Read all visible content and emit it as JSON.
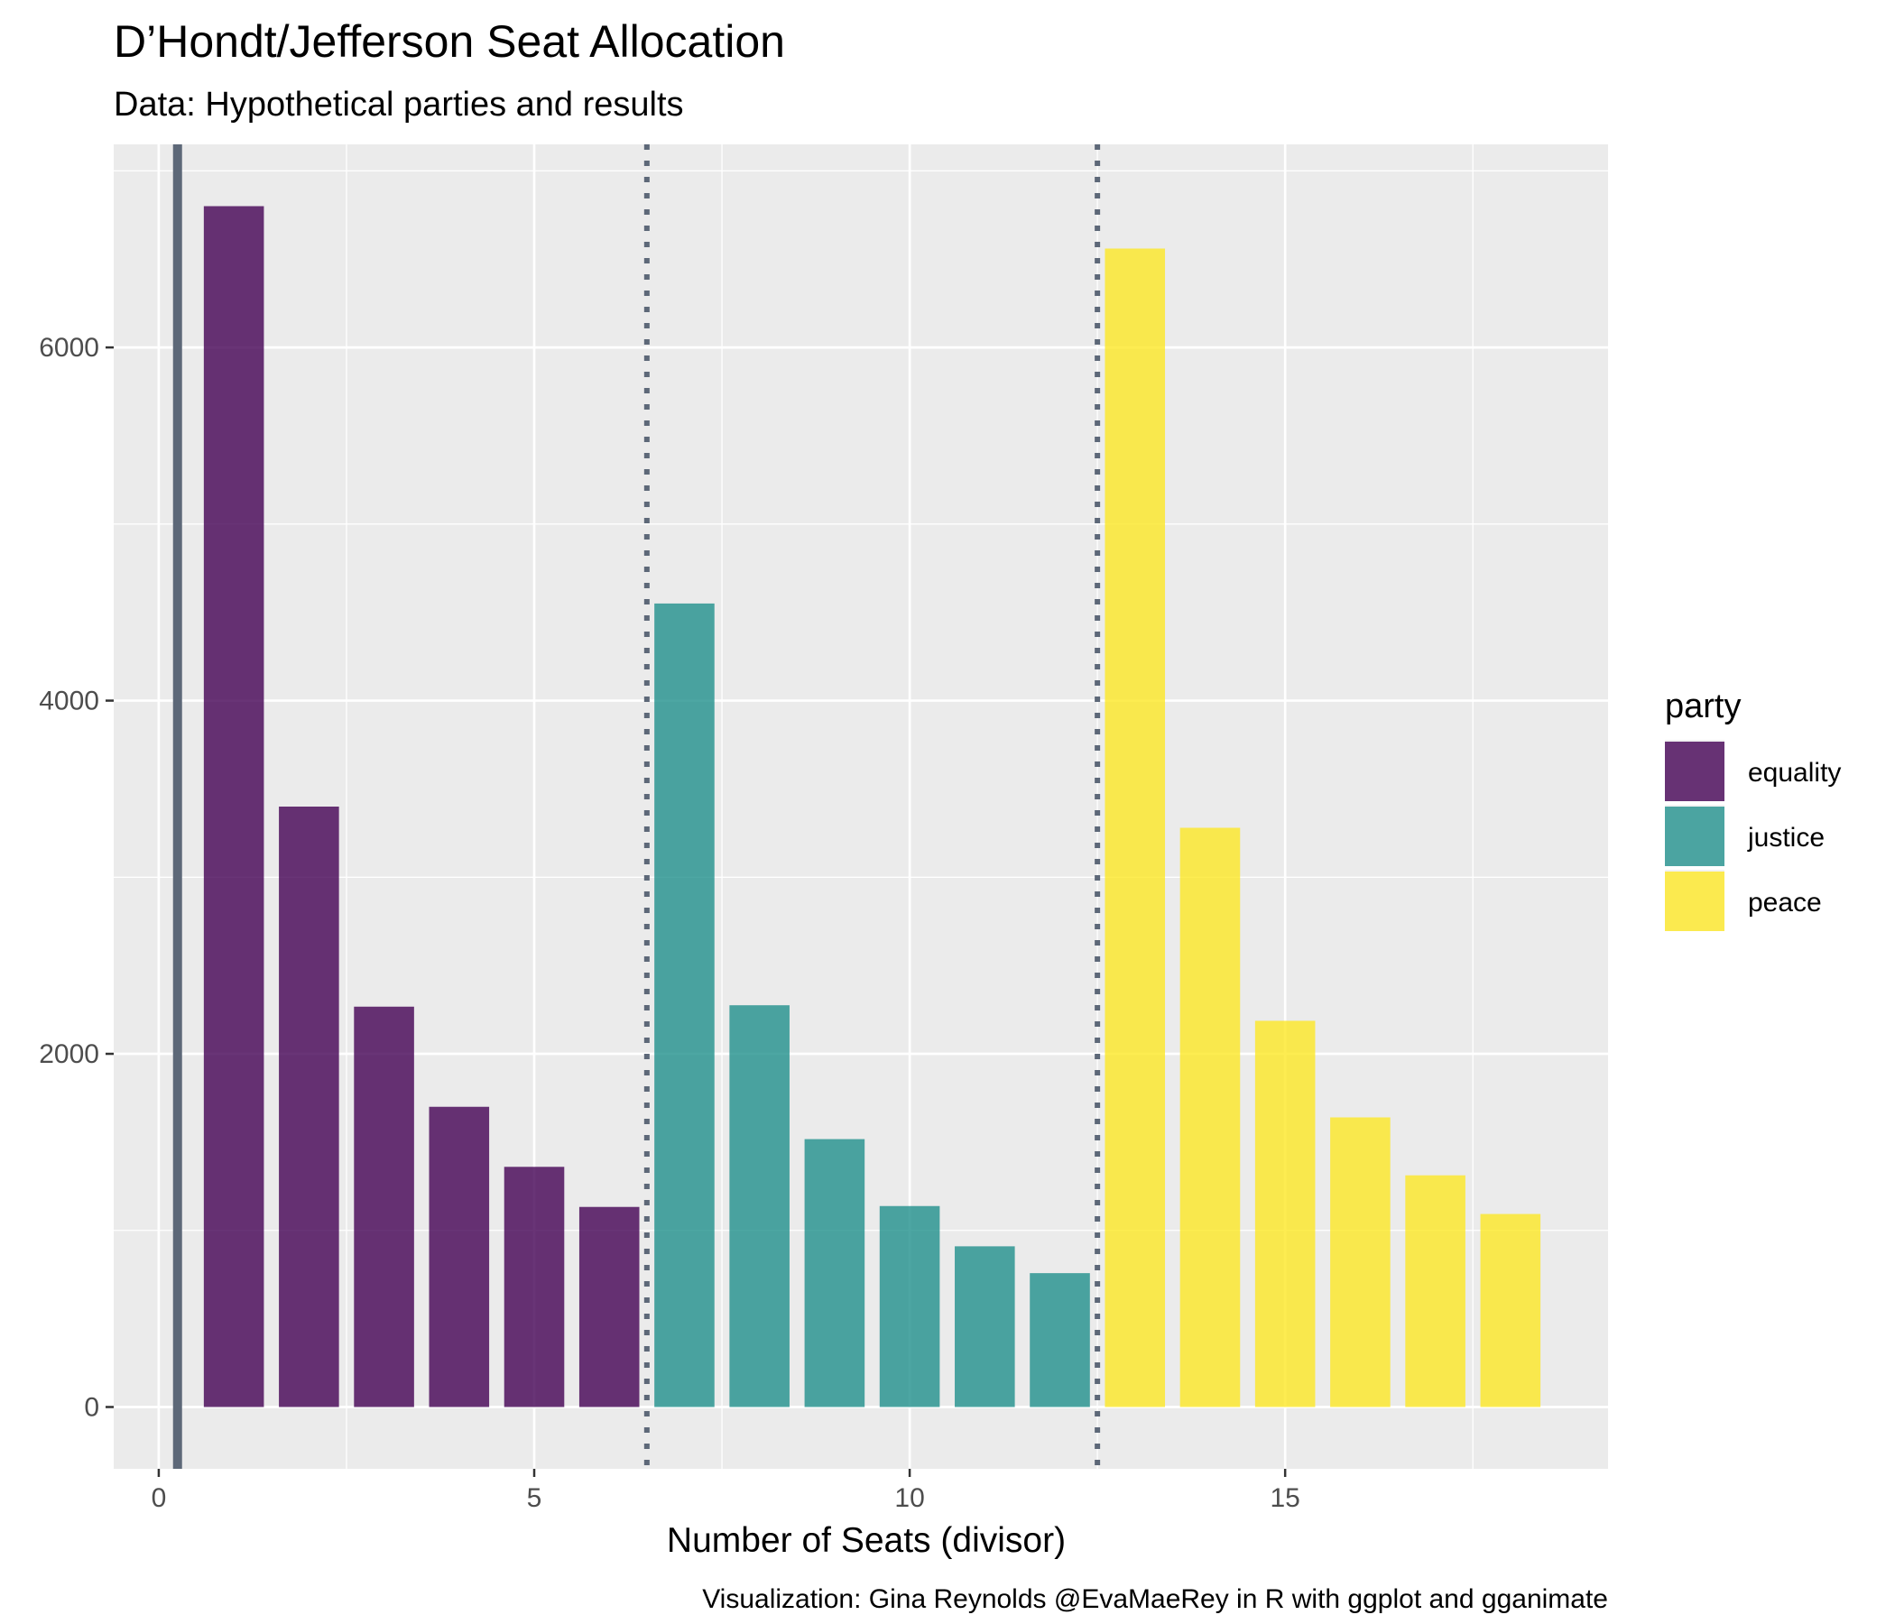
{
  "chart_data": {
    "type": "bar",
    "title": "D’Hondt/Jefferson Seat Allocation",
    "subtitle": "Data: Hypothetical parties and results",
    "xlabel": "Number of Seats (divisor)",
    "ylabel": "",
    "caption": "Visualization: Gina Reynolds @EvaMaeRey in R with ggplot and gganimate",
    "xlim": [
      -0.6,
      19.3
    ],
    "ylim": [
      -350,
      7150
    ],
    "x_ticks": [
      0,
      5,
      10,
      15
    ],
    "x_tick_labels": [
      "0",
      "5",
      "10",
      "15"
    ],
    "y_ticks": [
      0,
      2000,
      4000,
      6000
    ],
    "y_tick_labels": [
      "0",
      "2000",
      "4000",
      "6000"
    ],
    "grid": true,
    "legend": {
      "title": "party",
      "position": "right"
    },
    "series": [
      {
        "name": "equality",
        "color": "#440154",
        "x": [
          1,
          2,
          3,
          4,
          5,
          6
        ],
        "values": [
          6800,
          3400,
          2267,
          1700,
          1360,
          1133
        ]
      },
      {
        "name": "justice",
        "color": "#21908C",
        "x": [
          7,
          8,
          9,
          10,
          11,
          12
        ],
        "values": [
          4550,
          2275,
          1517,
          1138,
          910,
          758
        ]
      },
      {
        "name": "peace",
        "color": "#FDE725",
        "x": [
          13,
          14,
          15,
          16,
          17,
          18
        ],
        "values": [
          6560,
          3280,
          2187,
          1640,
          1312,
          1093
        ]
      }
    ],
    "bar_opacity": 0.8,
    "vlines": [
      {
        "x": 0.25,
        "style": "solid",
        "color": "#5d6878"
      },
      {
        "x": 6.5,
        "style": "dotted",
        "color": "#5d6878"
      },
      {
        "x": 12.5,
        "style": "dotted",
        "color": "#5d6878"
      }
    ]
  }
}
